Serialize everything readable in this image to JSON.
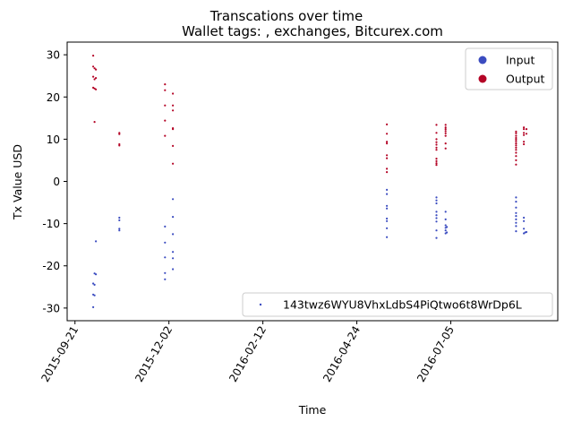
{
  "chart_data": {
    "type": "scatter",
    "title": "Transcations over time",
    "subtitle": "Wallet tags: , exchanges, Bitcurex.com",
    "xlabel": "Time",
    "ylabel": "Tx Value USD",
    "xlim": [
      "2015-09-15",
      "2016-09-25"
    ],
    "ylim": [
      -33,
      33
    ],
    "xticks": [
      "2015-09-21",
      "2015-12-02",
      "2016-02-12",
      "2016-04-24",
      "2016-07-05"
    ],
    "yticks": [
      -30,
      -20,
      -10,
      0,
      10,
      20,
      30
    ],
    "grid": false,
    "legend_position": "top-right",
    "address_legend_position": "bottom-right",
    "address_label": "143twz6WYU8VhxLdbS4PiQtwo6t8WrDp6L",
    "address_color": "#3b4cc0",
    "series": [
      {
        "name": "Input",
        "color": "#3b4cc0",
        "points": [
          [
            "2015-10-07",
            -14.2
          ],
          [
            "2015-10-06",
            -21.8
          ],
          [
            "2015-10-07",
            -22
          ],
          [
            "2015-10-05",
            -24.2
          ],
          [
            "2015-10-06",
            -24.5
          ],
          [
            "2015-10-05",
            -26.8
          ],
          [
            "2015-10-06",
            -27
          ],
          [
            "2015-10-05",
            -29.8
          ],
          [
            "2015-10-25",
            -8.6
          ],
          [
            "2015-10-25",
            -9.2
          ],
          [
            "2015-10-25",
            -11.2
          ],
          [
            "2015-10-25",
            -11.6
          ],
          [
            "2015-11-29",
            -10.7
          ],
          [
            "2015-11-29",
            -14.5
          ],
          [
            "2015-11-29",
            -18
          ],
          [
            "2015-11-29",
            -21.7
          ],
          [
            "2015-11-29",
            -23.2
          ],
          [
            "2015-12-05",
            -4.2
          ],
          [
            "2015-12-05",
            -8.4
          ],
          [
            "2015-12-05",
            -12.5
          ],
          [
            "2015-12-05",
            -16.7
          ],
          [
            "2015-12-05",
            -18.2
          ],
          [
            "2015-12-05",
            -20.8
          ],
          [
            "2016-05-17",
            -2
          ],
          [
            "2016-05-17",
            -3
          ],
          [
            "2016-05-17",
            -5.8
          ],
          [
            "2016-05-17",
            -6.4
          ],
          [
            "2016-05-17",
            -8.8
          ],
          [
            "2016-05-17",
            -9.4
          ],
          [
            "2016-05-17",
            -11.1
          ],
          [
            "2016-05-17",
            -13.2
          ],
          [
            "2016-06-24",
            -3.8
          ],
          [
            "2016-06-24",
            -4.5
          ],
          [
            "2016-06-24",
            -5.2
          ],
          [
            "2016-06-24",
            -7.2
          ],
          [
            "2016-06-24",
            -8
          ],
          [
            "2016-06-24",
            -8.7
          ],
          [
            "2016-06-24",
            -9.5
          ],
          [
            "2016-06-24",
            -11.6
          ],
          [
            "2016-06-24",
            -13.4
          ],
          [
            "2016-07-01",
            -7.2
          ],
          [
            "2016-07-01",
            -9
          ],
          [
            "2016-07-01",
            -10.4
          ],
          [
            "2016-07-01",
            -11
          ],
          [
            "2016-07-01",
            -11.6
          ],
          [
            "2016-07-01",
            -12.3
          ],
          [
            "2016-07-02",
            -10.8
          ],
          [
            "2016-07-02",
            -12.1
          ],
          [
            "2016-08-24",
            -3.8
          ],
          [
            "2016-08-24",
            -4.8
          ],
          [
            "2016-08-24",
            -6.2
          ],
          [
            "2016-08-24",
            -7.5
          ],
          [
            "2016-08-24",
            -8.2
          ],
          [
            "2016-08-24",
            -9
          ],
          [
            "2016-08-24",
            -9.8
          ],
          [
            "2016-08-24",
            -10.6
          ],
          [
            "2016-08-24",
            -11.8
          ],
          [
            "2016-08-30",
            -8.6
          ],
          [
            "2016-08-30",
            -9.4
          ],
          [
            "2016-08-30",
            -11.2
          ],
          [
            "2016-08-30",
            -12.3
          ],
          [
            "2016-08-31",
            -12.1
          ],
          [
            "2016-09-01",
            -12
          ]
        ]
      },
      {
        "name": "Output",
        "color": "#b40426",
        "points": [
          [
            "2015-10-05",
            29.8
          ],
          [
            "2015-10-05",
            27.2
          ],
          [
            "2015-10-06",
            26.8
          ],
          [
            "2015-10-07",
            26.5
          ],
          [
            "2015-10-05",
            24.8
          ],
          [
            "2015-10-06",
            24.2
          ],
          [
            "2015-10-07",
            24.5
          ],
          [
            "2015-10-05",
            22.2
          ],
          [
            "2015-10-06",
            22
          ],
          [
            "2015-10-07",
            21.8
          ],
          [
            "2015-10-06",
            14.1
          ],
          [
            "2015-10-25",
            11.5
          ],
          [
            "2015-10-25",
            11.2
          ],
          [
            "2015-10-25",
            8.8
          ],
          [
            "2015-10-25",
            8.5
          ],
          [
            "2015-11-29",
            23
          ],
          [
            "2015-11-29",
            21.6
          ],
          [
            "2015-11-29",
            18
          ],
          [
            "2015-11-29",
            14.4
          ],
          [
            "2015-11-29",
            10.8
          ],
          [
            "2015-12-05",
            20.8
          ],
          [
            "2015-12-05",
            18
          ],
          [
            "2015-12-05",
            16.8
          ],
          [
            "2015-12-05",
            12.6
          ],
          [
            "2015-12-05",
            12.4
          ],
          [
            "2015-12-05",
            8.4
          ],
          [
            "2015-12-05",
            4.2
          ],
          [
            "2016-05-17",
            13.5
          ],
          [
            "2016-05-17",
            11.3
          ],
          [
            "2016-05-17",
            9.4
          ],
          [
            "2016-05-17",
            9
          ],
          [
            "2016-05-17",
            6.2
          ],
          [
            "2016-05-17",
            5.5
          ],
          [
            "2016-05-17",
            3
          ],
          [
            "2016-05-17",
            2.2
          ],
          [
            "2016-06-24",
            13.4
          ],
          [
            "2016-06-24",
            11.5
          ],
          [
            "2016-06-24",
            10
          ],
          [
            "2016-06-24",
            9.3
          ],
          [
            "2016-06-24",
            8.7
          ],
          [
            "2016-06-24",
            8
          ],
          [
            "2016-06-24",
            7.5
          ],
          [
            "2016-06-24",
            5.4
          ],
          [
            "2016-06-24",
            4.8
          ],
          [
            "2016-06-24",
            4.3
          ],
          [
            "2016-06-24",
            3.9
          ],
          [
            "2016-07-01",
            13.4
          ],
          [
            "2016-07-01",
            12.8
          ],
          [
            "2016-07-01",
            12.4
          ],
          [
            "2016-07-01",
            11.9
          ],
          [
            "2016-07-01",
            11.4
          ],
          [
            "2016-07-01",
            10.8
          ],
          [
            "2016-07-01",
            9
          ],
          [
            "2016-07-01",
            7.8
          ],
          [
            "2016-08-24",
            11.8
          ],
          [
            "2016-08-24",
            11.4
          ],
          [
            "2016-08-24",
            10.8
          ],
          [
            "2016-08-24",
            10.3
          ],
          [
            "2016-08-24",
            9.9
          ],
          [
            "2016-08-24",
            9.5
          ],
          [
            "2016-08-24",
            9
          ],
          [
            "2016-08-24",
            8.5
          ],
          [
            "2016-08-24",
            8
          ],
          [
            "2016-08-24",
            7.5
          ],
          [
            "2016-08-24",
            6.8
          ],
          [
            "2016-08-24",
            6
          ],
          [
            "2016-08-24",
            5
          ],
          [
            "2016-08-24",
            4
          ],
          [
            "2016-08-30",
            12.8
          ],
          [
            "2016-08-30",
            12.4
          ],
          [
            "2016-08-30",
            11.5
          ],
          [
            "2016-08-30",
            11
          ],
          [
            "2016-08-30",
            9.4
          ],
          [
            "2016-08-30",
            8.8
          ],
          [
            "2016-09-01",
            12.4
          ],
          [
            "2016-09-01",
            11.3
          ]
        ]
      }
    ]
  }
}
